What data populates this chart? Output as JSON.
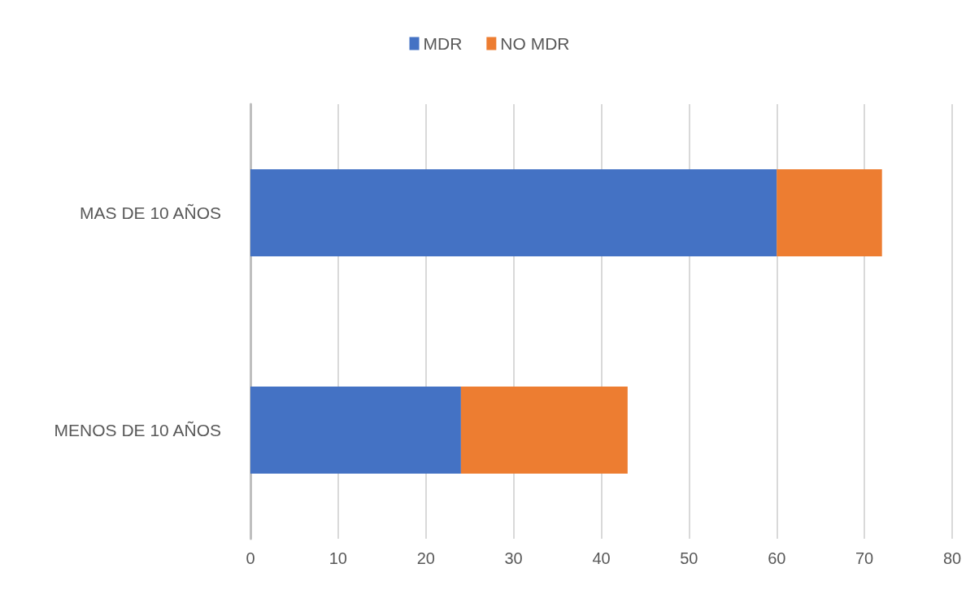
{
  "chart_data": {
    "type": "bar",
    "orientation": "horizontal",
    "stacked": true,
    "categories": [
      "MAS DE 10 AÑOS",
      "MENOS DE 10 AÑOS"
    ],
    "series": [
      {
        "name": "MDR",
        "color": "#4472c4",
        "values": [
          60,
          24
        ]
      },
      {
        "name": "NO MDR",
        "color": "#ed7d31",
        "values": [
          12,
          19
        ]
      }
    ],
    "xlim": [
      0,
      80
    ],
    "xticks": [
      0,
      10,
      20,
      30,
      40,
      50,
      60,
      70,
      80
    ],
    "grid": "x",
    "legend": "top"
  }
}
